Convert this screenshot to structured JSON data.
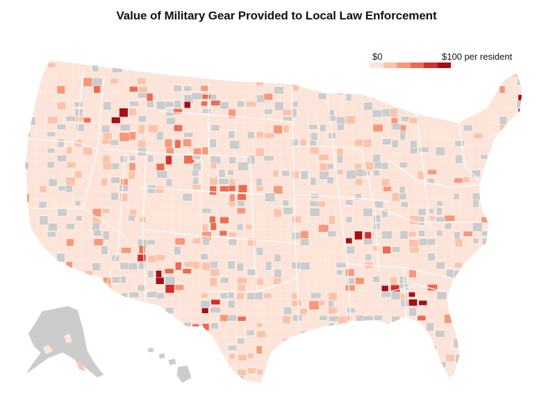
{
  "title": "Value of Military Gear Provided to Local Law Enforcement",
  "legend": {
    "min_label": "$0",
    "max_label": "$100 per resident",
    "colors": [
      "#fde4d9",
      "#fcc3ab",
      "#f7987a",
      "#ec6b52",
      "#d52f2b",
      "#a50f15"
    ],
    "no_data_color": "#cccccc"
  },
  "map": {
    "regions": [
      "contiguous-us",
      "alaska",
      "hawaii"
    ],
    "base_color": "#fde4d9",
    "border_color": "#ffffff"
  }
}
